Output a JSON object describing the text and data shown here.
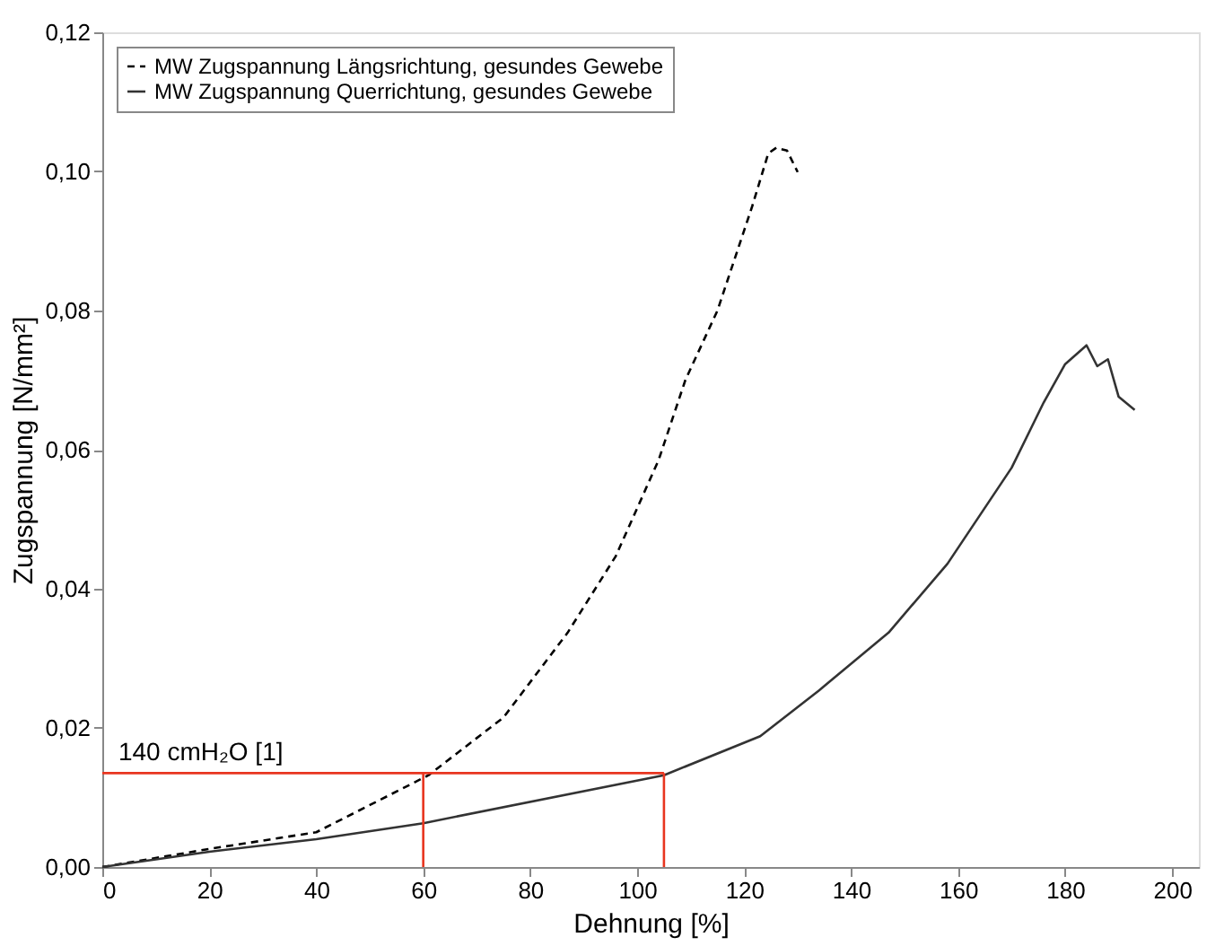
{
  "chart_data": {
    "type": "line",
    "xlabel": "Dehnung [%]",
    "ylabel": "Zugspannung [N/mm²]",
    "xlim": [
      0,
      205
    ],
    "ylim": [
      0,
      0.12
    ],
    "xticks": [
      0,
      20,
      40,
      60,
      80,
      100,
      120,
      140,
      160,
      180,
      200
    ],
    "yticks": [
      {
        "value": 0,
        "label": "0,00"
      },
      {
        "value": 0.02,
        "label": "0,02"
      },
      {
        "value": 0.04,
        "label": "0,04"
      },
      {
        "value": 0.06,
        "label": "0,06"
      },
      {
        "value": 0.08,
        "label": "0,08"
      },
      {
        "value": 0.1,
        "label": "0,10"
      },
      {
        "value": 0.12,
        "label": "0,12"
      }
    ],
    "grid": false,
    "legend": "top left",
    "marker": "none",
    "series": [
      {
        "name": "MW Zugspannung Längsrichtung, gesundes Gewebe",
        "color": "#000000",
        "line_style": "dashed",
        "x": [
          0,
          20,
          40,
          61,
          75,
          87,
          96,
          104,
          109,
          115,
          121.5,
          124.5,
          126,
          128,
          130
        ],
        "values": [
          0,
          0.0026,
          0.005,
          0.0132,
          0.0215,
          0.0337,
          0.0447,
          0.0585,
          0.07,
          0.08,
          0.095,
          0.1026,
          0.1034,
          0.103,
          0.0999
        ]
      },
      {
        "name": "MW Zugspannung Querrichtung, gesundes Gewebe",
        "color": "#333333",
        "line_style": "solid",
        "x": [
          0,
          20,
          40,
          60,
          105,
          123,
          134,
          147,
          158,
          170,
          176,
          180,
          184,
          186,
          188,
          190,
          193
        ],
        "values": [
          0,
          0.0022,
          0.004,
          0.0063,
          0.0132,
          0.0188,
          0.0254,
          0.0337,
          0.0436,
          0.0574,
          0.0668,
          0.0723,
          0.075,
          0.072,
          0.073,
          0.0676,
          0.0657
        ]
      },
      {
        "color": "#e8351f",
        "line_style": "solid",
        "x": [
          0,
          105
        ],
        "values": [
          0.0135,
          0.0135
        ]
      },
      {
        "color": "#e8351f",
        "line_style": "solid",
        "x": [
          60,
          60
        ],
        "values": [
          0,
          0.0135
        ]
      },
      {
        "color": "#e8351f",
        "line_style": "solid",
        "x": [
          105,
          105
        ],
        "values": [
          0,
          0.0135
        ]
      }
    ],
    "annotations": [
      {
        "text": "140 cmH₂O [1]",
        "x": 3,
        "y": 0.0135
      }
    ]
  }
}
